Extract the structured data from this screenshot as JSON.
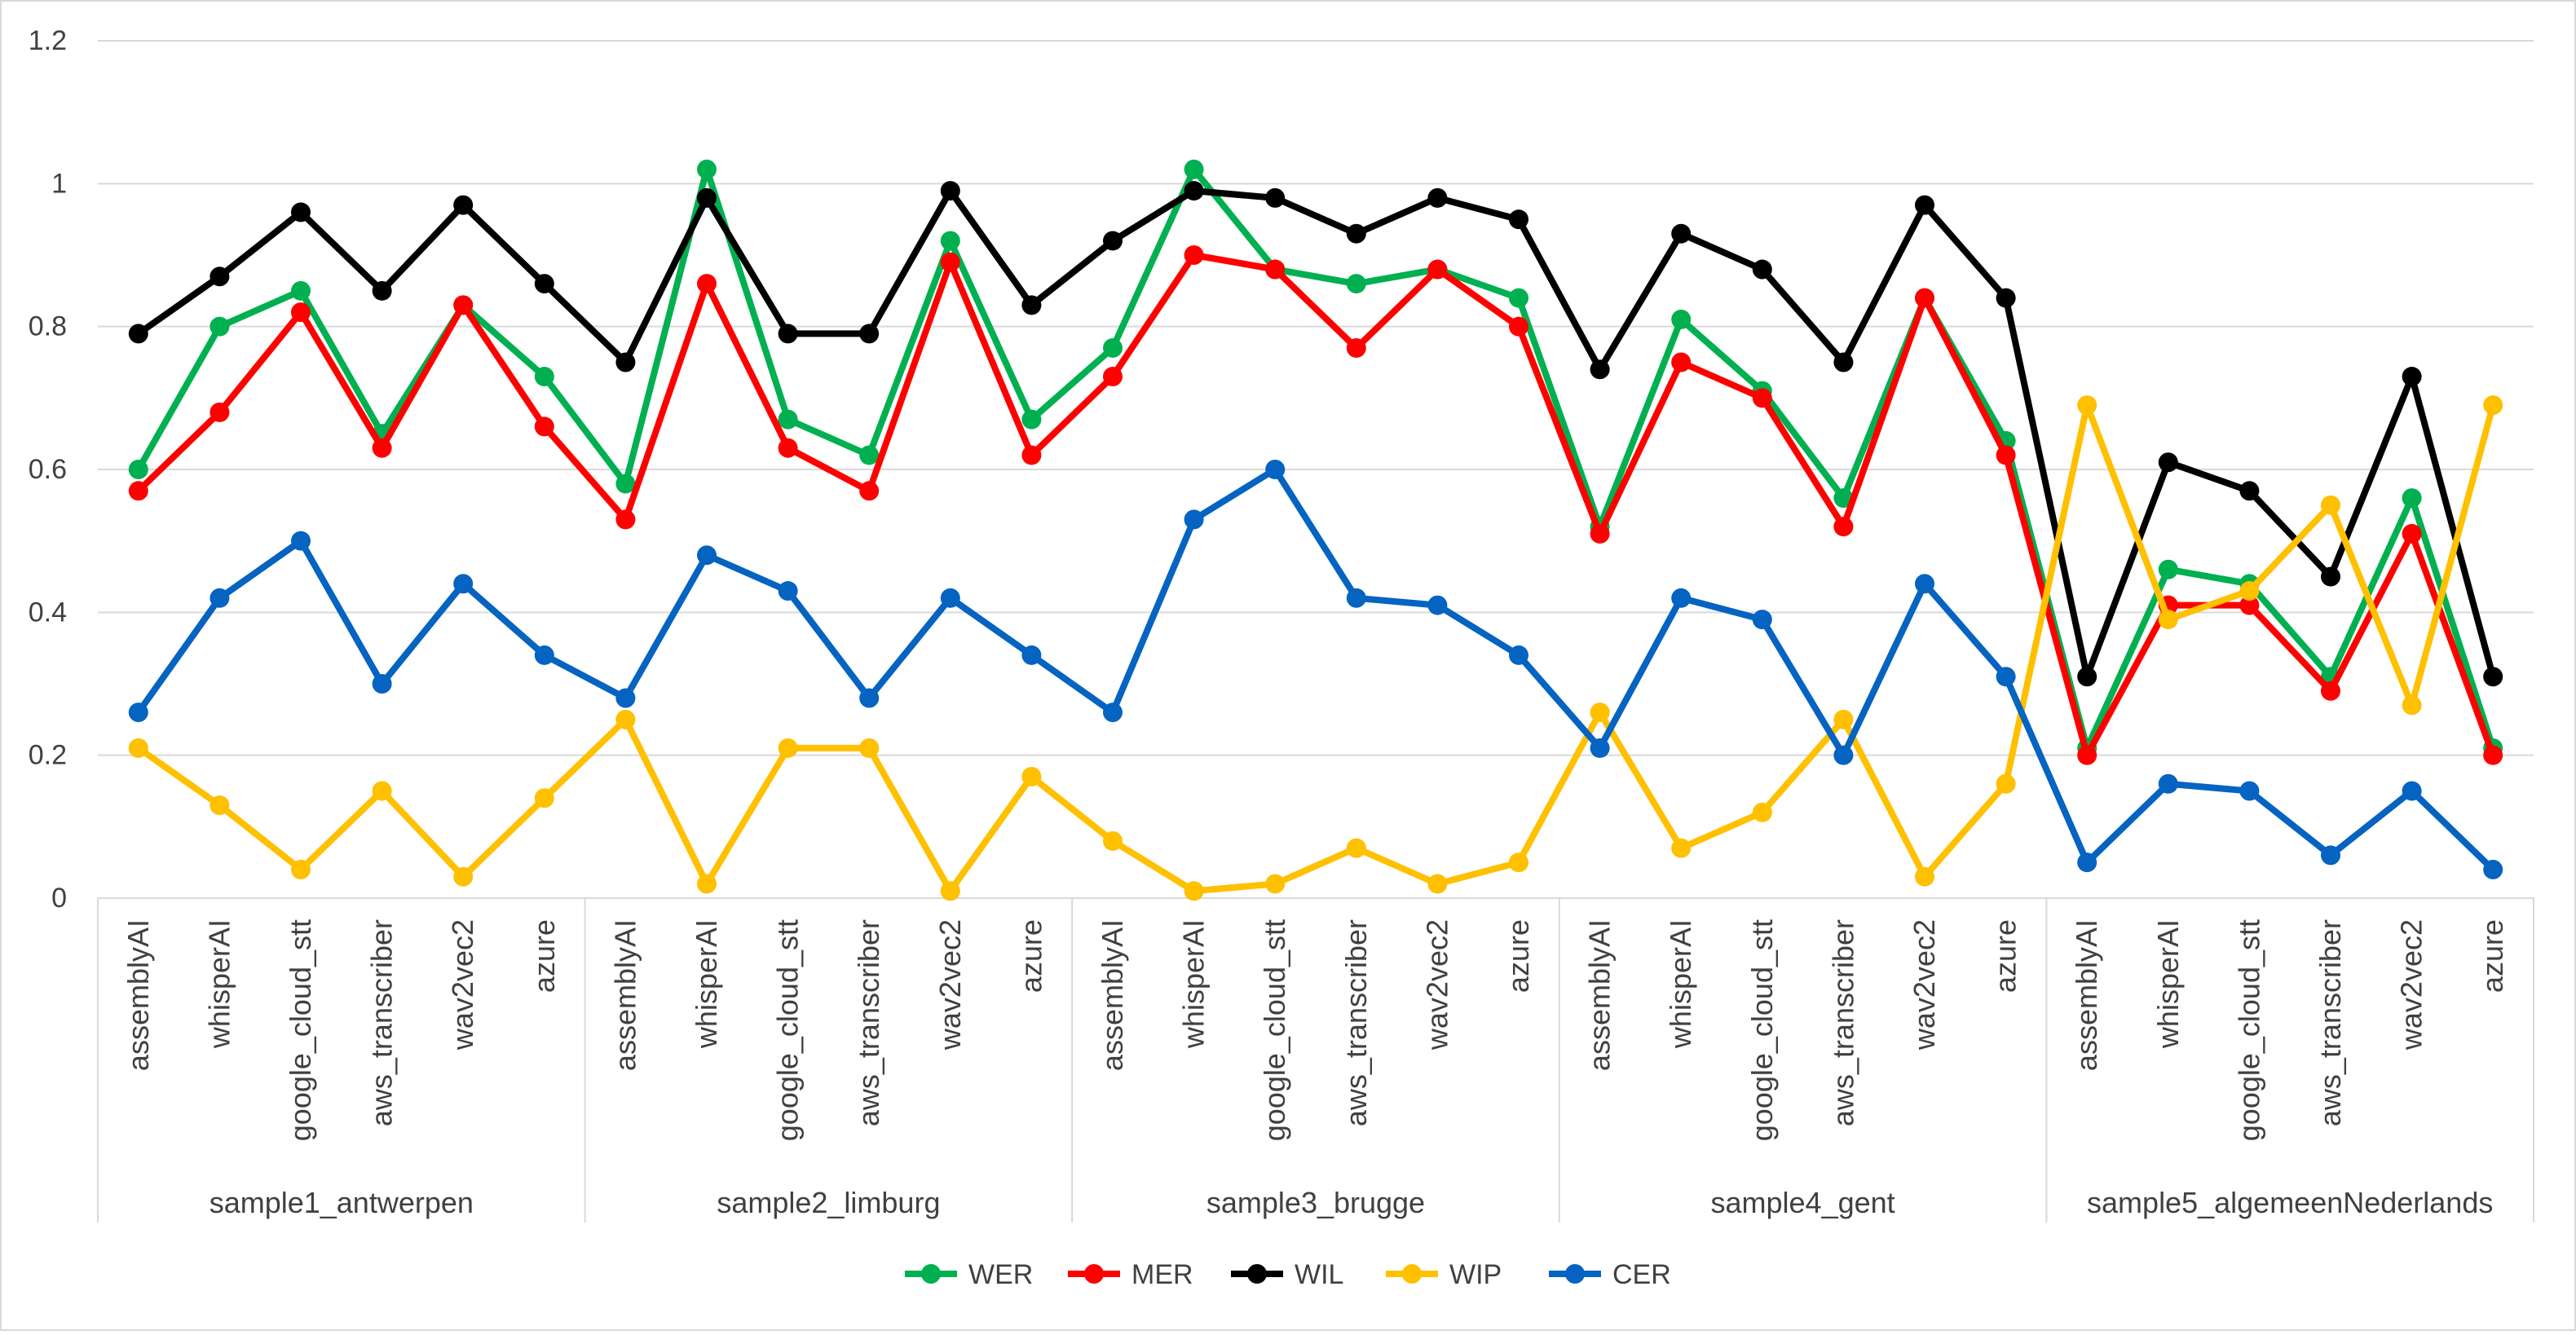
{
  "chart_data": {
    "type": "line",
    "title": "",
    "xlabel": "",
    "ylabel": "",
    "ylim": [
      0,
      1.2
    ],
    "yticks": [
      "0",
      "0.2",
      "0.4",
      "0.6",
      "0.8",
      "1",
      "1.2"
    ],
    "grid": true,
    "legend_position": "bottom",
    "groups": [
      "sample1_antwerpen",
      "sample2_limburg",
      "sample3_brugge",
      "sample4_gent",
      "sample5_algemeenNederlands"
    ],
    "models": [
      "assemblyAI",
      "whisperAI",
      "google_cloud_stt",
      "aws_transcriber",
      "wav2vec2",
      "azure"
    ],
    "series": [
      {
        "name": "WER",
        "color": "#00B050",
        "values": [
          0.6,
          0.8,
          0.85,
          0.65,
          0.83,
          0.73,
          0.58,
          1.02,
          0.67,
          0.62,
          0.92,
          0.67,
          0.77,
          1.02,
          0.88,
          0.86,
          0.88,
          0.84,
          0.52,
          0.81,
          0.71,
          0.56,
          0.84,
          0.64,
          0.21,
          0.46,
          0.44,
          0.31,
          0.56,
          0.21
        ]
      },
      {
        "name": "MER",
        "color": "#FF0000",
        "values": [
          0.57,
          0.68,
          0.82,
          0.63,
          0.83,
          0.66,
          0.53,
          0.86,
          0.63,
          0.57,
          0.89,
          0.62,
          0.73,
          0.9,
          0.88,
          0.77,
          0.88,
          0.8,
          0.51,
          0.75,
          0.7,
          0.52,
          0.84,
          0.62,
          0.2,
          0.41,
          0.41,
          0.29,
          0.51,
          0.2
        ]
      },
      {
        "name": "WIL",
        "color": "#000000",
        "values": [
          0.79,
          0.87,
          0.96,
          0.85,
          0.97,
          0.86,
          0.75,
          0.98,
          0.79,
          0.79,
          0.99,
          0.83,
          0.92,
          0.99,
          0.98,
          0.93,
          0.98,
          0.95,
          0.74,
          0.93,
          0.88,
          0.75,
          0.97,
          0.84,
          0.31,
          0.61,
          0.57,
          0.45,
          0.73,
          0.31
        ]
      },
      {
        "name": "WIP",
        "color": "#FFC000",
        "values": [
          0.21,
          0.13,
          0.04,
          0.15,
          0.03,
          0.14,
          0.25,
          0.02,
          0.21,
          0.21,
          0.01,
          0.17,
          0.08,
          0.01,
          0.02,
          0.07,
          0.02,
          0.05,
          0.26,
          0.07,
          0.12,
          0.25,
          0.03,
          0.16,
          0.69,
          0.39,
          0.43,
          0.55,
          0.27,
          0.69
        ]
      },
      {
        "name": "CER",
        "color": "#0563C1",
        "values": [
          0.26,
          0.42,
          0.5,
          0.3,
          0.44,
          0.34,
          0.28,
          0.48,
          0.43,
          0.28,
          0.42,
          0.34,
          0.26,
          0.53,
          0.6,
          0.42,
          0.41,
          0.34,
          0.21,
          0.42,
          0.39,
          0.2,
          0.44,
          0.31,
          0.05,
          0.16,
          0.15,
          0.06,
          0.15,
          0.04
        ]
      }
    ]
  }
}
